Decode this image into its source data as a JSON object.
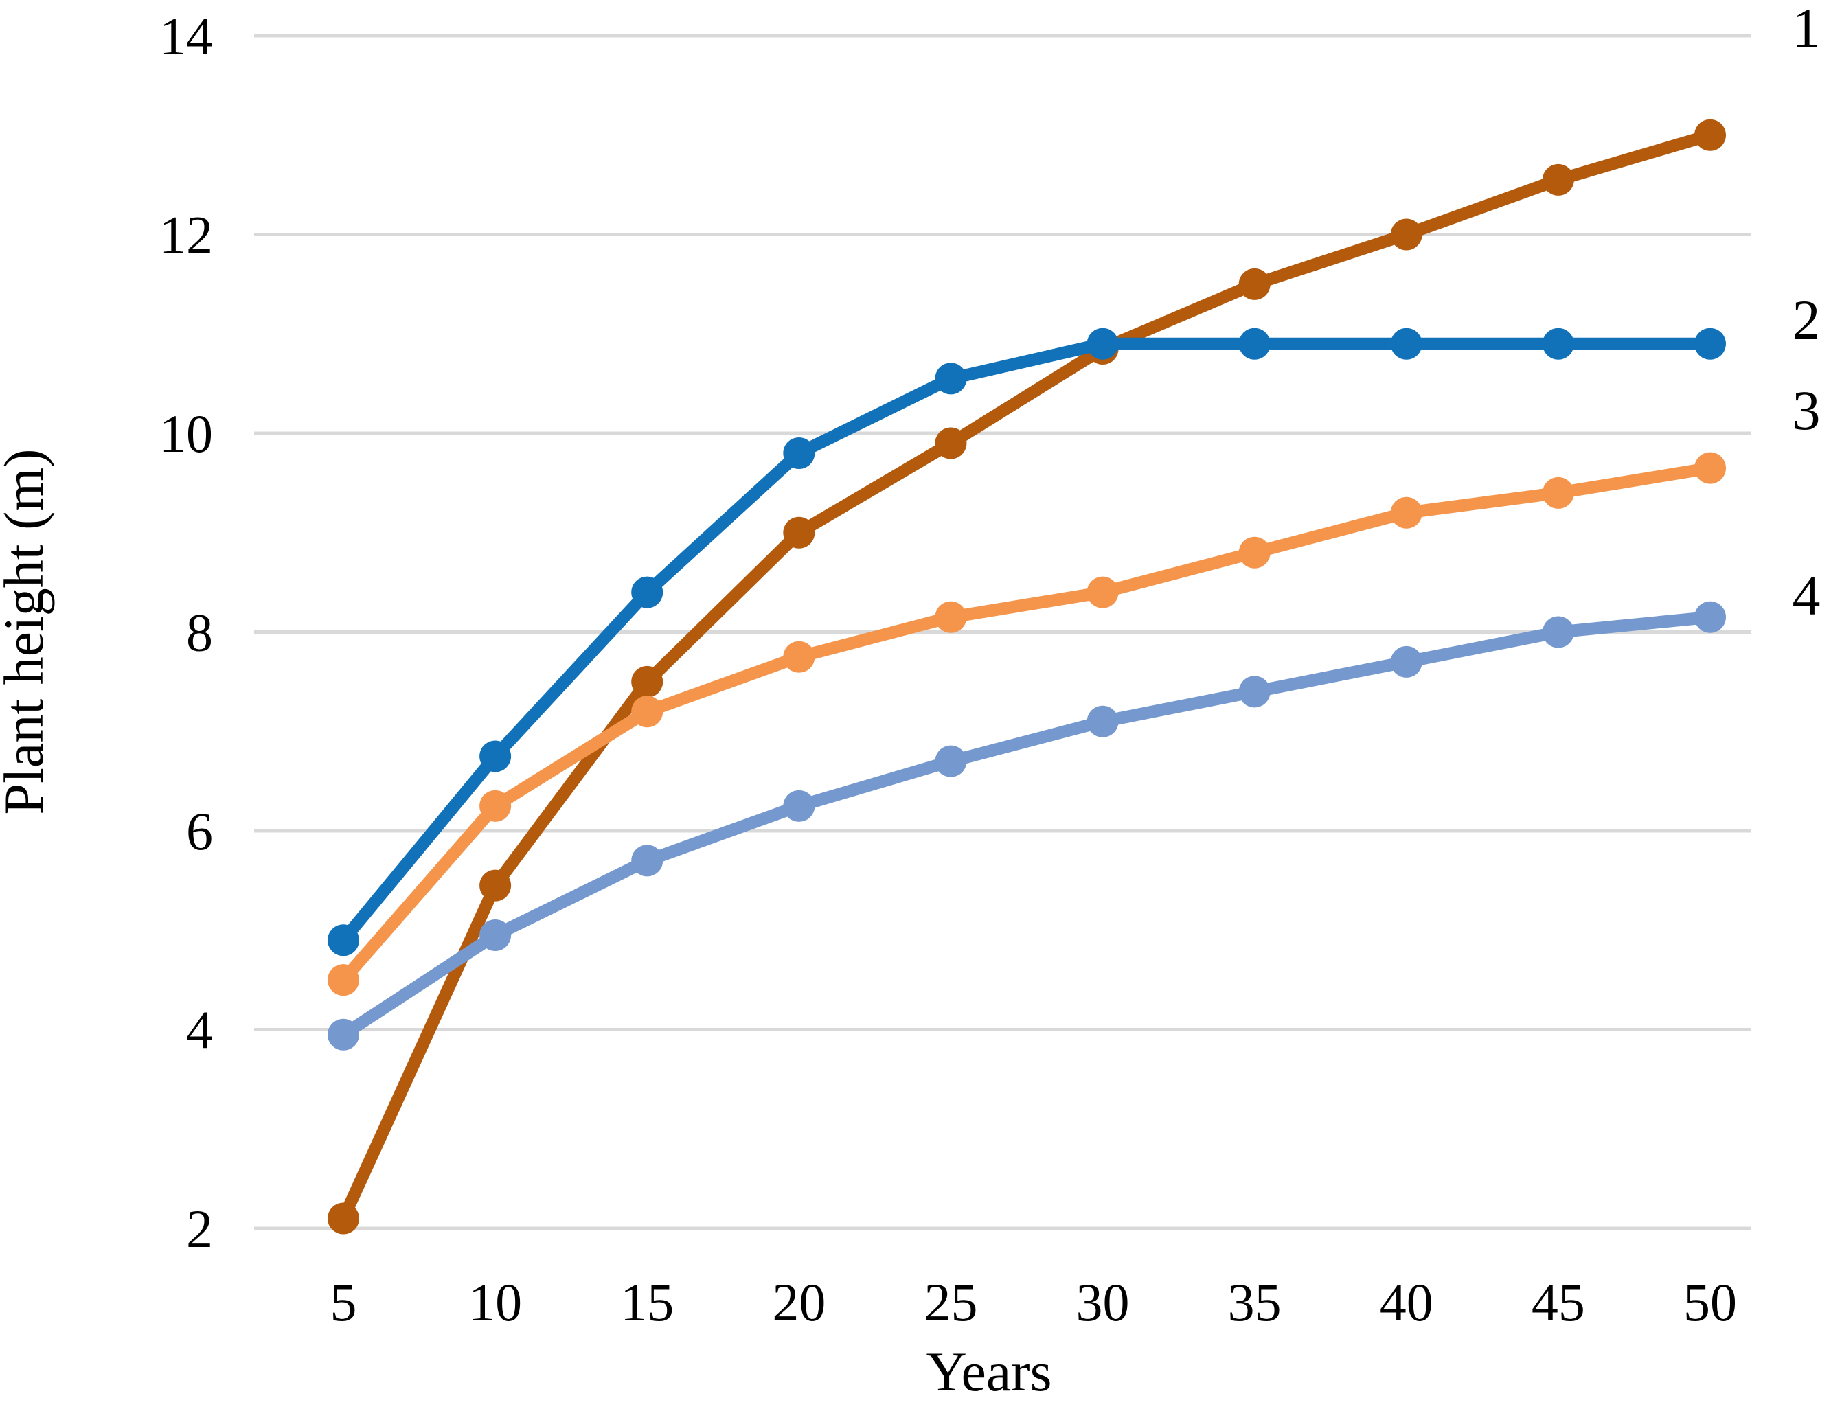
{
  "chart_data": {
    "type": "line",
    "title": "",
    "xlabel": "Years",
    "ylabel": "Plant height (m)",
    "x": [
      5,
      10,
      15,
      20,
      25,
      30,
      35,
      40,
      45,
      50
    ],
    "xlim": [
      5,
      50
    ],
    "ylim": [
      2,
      14
    ],
    "x_ticks": [
      5,
      10,
      15,
      20,
      25,
      30,
      35,
      40,
      45,
      50
    ],
    "y_ticks": [
      2,
      4,
      6,
      8,
      10,
      12,
      14
    ],
    "grid": "horizontal",
    "gridline_color": "#D9D9D9",
    "legend_position": "right-edge-labels",
    "series": [
      {
        "name": "1",
        "color": "#B35A0D",
        "values": [
          2.1,
          5.45,
          7.5,
          9.0,
          9.9,
          10.85,
          11.5,
          12.0,
          12.55,
          13.0
        ]
      },
      {
        "name": "2",
        "color": "#1272B9",
        "values": [
          4.9,
          6.75,
          8.4,
          9.8,
          10.55,
          10.9,
          10.9,
          10.9,
          10.9,
          10.9
        ]
      },
      {
        "name": "3",
        "color": "#F5954B",
        "values": [
          4.5,
          6.25,
          7.2,
          7.75,
          8.15,
          8.4,
          8.8,
          9.2,
          9.4,
          9.65
        ]
      },
      {
        "name": "4",
        "color": "#7599CE",
        "values": [
          3.95,
          4.95,
          5.7,
          6.25,
          6.7,
          7.1,
          7.4,
          7.7,
          8.0,
          8.15
        ]
      }
    ],
    "right_labels": [
      "1",
      "2",
      "3",
      "4"
    ],
    "text_color": "#000000"
  }
}
